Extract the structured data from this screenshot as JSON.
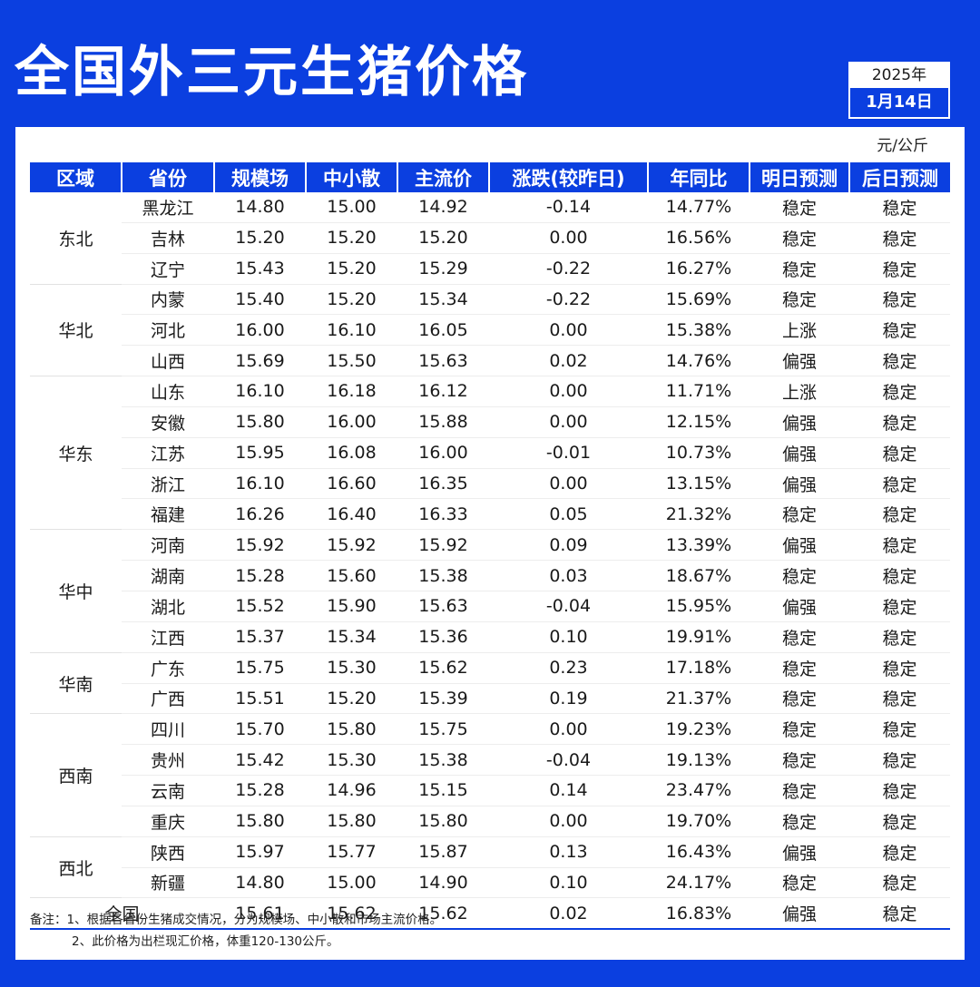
{
  "title": "全国外三元生猪价格",
  "date": {
    "year": "2025年",
    "day": "1月14日"
  },
  "unit": "元/公斤",
  "headers": [
    "区域",
    "省份",
    "规模场",
    "中小散",
    "主流价",
    "涨跌(较昨日)",
    "年同比",
    "明日预测",
    "后日预测"
  ],
  "regions": [
    {
      "name": "东北",
      "rows": 3
    },
    {
      "name": "华北",
      "rows": 3
    },
    {
      "name": "华东",
      "rows": 5
    },
    {
      "name": "华中",
      "rows": 4
    },
    {
      "name": "华南",
      "rows": 2
    },
    {
      "name": "西南",
      "rows": 4
    },
    {
      "name": "西北",
      "rows": 2
    }
  ],
  "rows": [
    {
      "province": "黑龙江",
      "scale": "14.80",
      "small": "15.00",
      "main": "14.92",
      "change": "-0.14",
      "yoy": "14.77%",
      "tomorrow": "稳定",
      "after": "稳定"
    },
    {
      "province": "吉林",
      "scale": "15.20",
      "small": "15.20",
      "main": "15.20",
      "change": "0.00",
      "yoy": "16.56%",
      "tomorrow": "稳定",
      "after": "稳定"
    },
    {
      "province": "辽宁",
      "scale": "15.43",
      "small": "15.20",
      "main": "15.29",
      "change": "-0.22",
      "yoy": "16.27%",
      "tomorrow": "稳定",
      "after": "稳定"
    },
    {
      "province": "内蒙",
      "scale": "15.40",
      "small": "15.20",
      "main": "15.34",
      "change": "-0.22",
      "yoy": "15.69%",
      "tomorrow": "稳定",
      "after": "稳定"
    },
    {
      "province": "河北",
      "scale": "16.00",
      "small": "16.10",
      "main": "16.05",
      "change": "0.00",
      "yoy": "15.38%",
      "tomorrow": "上涨",
      "after": "稳定"
    },
    {
      "province": "山西",
      "scale": "15.69",
      "small": "15.50",
      "main": "15.63",
      "change": "0.02",
      "yoy": "14.76%",
      "tomorrow": "偏强",
      "after": "稳定"
    },
    {
      "province": "山东",
      "scale": "16.10",
      "small": "16.18",
      "main": "16.12",
      "change": "0.00",
      "yoy": "11.71%",
      "tomorrow": "上涨",
      "after": "稳定"
    },
    {
      "province": "安徽",
      "scale": "15.80",
      "small": "16.00",
      "main": "15.88",
      "change": "0.00",
      "yoy": "12.15%",
      "tomorrow": "偏强",
      "after": "稳定"
    },
    {
      "province": "江苏",
      "scale": "15.95",
      "small": "16.08",
      "main": "16.00",
      "change": "-0.01",
      "yoy": "10.73%",
      "tomorrow": "偏强",
      "after": "稳定"
    },
    {
      "province": "浙江",
      "scale": "16.10",
      "small": "16.60",
      "main": "16.35",
      "change": "0.00",
      "yoy": "13.15%",
      "tomorrow": "偏强",
      "after": "稳定"
    },
    {
      "province": "福建",
      "scale": "16.26",
      "small": "16.40",
      "main": "16.33",
      "change": "0.05",
      "yoy": "21.32%",
      "tomorrow": "稳定",
      "after": "稳定"
    },
    {
      "province": "河南",
      "scale": "15.92",
      "small": "15.92",
      "main": "15.92",
      "change": "0.09",
      "yoy": "13.39%",
      "tomorrow": "偏强",
      "after": "稳定"
    },
    {
      "province": "湖南",
      "scale": "15.28",
      "small": "15.60",
      "main": "15.38",
      "change": "0.03",
      "yoy": "18.67%",
      "tomorrow": "稳定",
      "after": "稳定"
    },
    {
      "province": "湖北",
      "scale": "15.52",
      "small": "15.90",
      "main": "15.63",
      "change": "-0.04",
      "yoy": "15.95%",
      "tomorrow": "偏强",
      "after": "稳定"
    },
    {
      "province": "江西",
      "scale": "15.37",
      "small": "15.34",
      "main": "15.36",
      "change": "0.10",
      "yoy": "19.91%",
      "tomorrow": "稳定",
      "after": "稳定"
    },
    {
      "province": "广东",
      "scale": "15.75",
      "small": "15.30",
      "main": "15.62",
      "change": "0.23",
      "yoy": "17.18%",
      "tomorrow": "稳定",
      "after": "稳定"
    },
    {
      "province": "广西",
      "scale": "15.51",
      "small": "15.20",
      "main": "15.39",
      "change": "0.19",
      "yoy": "21.37%",
      "tomorrow": "稳定",
      "after": "稳定"
    },
    {
      "province": "四川",
      "scale": "15.70",
      "small": "15.80",
      "main": "15.75",
      "change": "0.00",
      "yoy": "19.23%",
      "tomorrow": "稳定",
      "after": "稳定"
    },
    {
      "province": "贵州",
      "scale": "15.42",
      "small": "15.30",
      "main": "15.38",
      "change": "-0.04",
      "yoy": "19.13%",
      "tomorrow": "稳定",
      "after": "稳定"
    },
    {
      "province": "云南",
      "scale": "15.28",
      "small": "14.96",
      "main": "15.15",
      "change": "0.14",
      "yoy": "23.47%",
      "tomorrow": "稳定",
      "after": "稳定"
    },
    {
      "province": "重庆",
      "scale": "15.80",
      "small": "15.80",
      "main": "15.80",
      "change": "0.00",
      "yoy": "19.70%",
      "tomorrow": "稳定",
      "after": "稳定"
    },
    {
      "province": "陕西",
      "scale": "15.97",
      "small": "15.77",
      "main": "15.87",
      "change": "0.13",
      "yoy": "16.43%",
      "tomorrow": "偏强",
      "after": "稳定"
    },
    {
      "province": "新疆",
      "scale": "14.80",
      "small": "15.00",
      "main": "14.90",
      "change": "0.10",
      "yoy": "24.17%",
      "tomorrow": "稳定",
      "after": "稳定"
    }
  ],
  "total": {
    "label": "全国",
    "scale": "15.61",
    "small": "15.62",
    "main": "15.62",
    "change": "0.02",
    "yoy": "16.83%",
    "tomorrow": "偏强",
    "after": "稳定"
  },
  "notes": [
    "备注：1、根据各省份生猪成交情况，分为规模场、中小散和市场主流价格。",
    "2、此价格为出栏现汇价格，体重120-130公斤。"
  ],
  "colors": {
    "brand_blue": "#0b3fe0",
    "up_red": "#e8244a",
    "down_green": "#1aa64a"
  }
}
